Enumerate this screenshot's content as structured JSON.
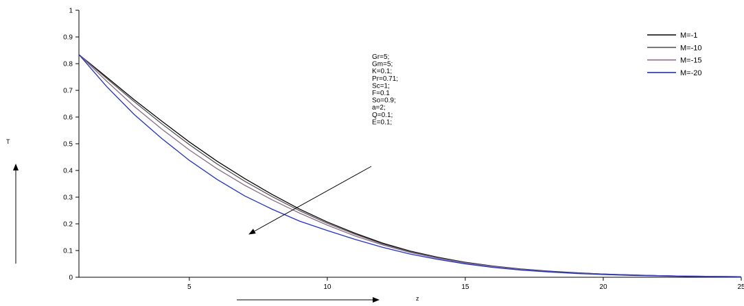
{
  "chart_data": {
    "type": "line",
    "title": "",
    "xlabel": "z",
    "ylabel": "T",
    "xlim": [
      1,
      25
    ],
    "ylim": [
      0,
      1
    ],
    "x_ticks": [
      "5",
      "10",
      "15",
      "20",
      "25"
    ],
    "y_ticks": [
      "0",
      "0.1",
      "0.2",
      "0.3",
      "0.4",
      "0.5",
      "0.6",
      "0.7",
      "0.8",
      "0.9",
      "1"
    ],
    "grid": false,
    "legend_position": "top-right",
    "x": [
      1,
      2,
      3,
      4,
      5,
      6,
      7,
      8,
      9,
      10,
      11,
      12,
      13,
      14,
      15,
      16,
      17,
      18,
      19,
      20,
      21,
      22,
      23,
      24,
      25
    ],
    "series": [
      {
        "name": "M=-1",
        "color": "#000000",
        "values": [
          0.834,
          0.75,
          0.665,
          0.585,
          0.507,
          0.435,
          0.37,
          0.31,
          0.255,
          0.207,
          0.165,
          0.128,
          0.098,
          0.075,
          0.056,
          0.042,
          0.031,
          0.023,
          0.017,
          0.012,
          0.009,
          0.006,
          0.004,
          0.003,
          0.002
        ]
      },
      {
        "name": "M=-10",
        "color": "#555555",
        "values": [
          0.834,
          0.745,
          0.658,
          0.575,
          0.497,
          0.425,
          0.36,
          0.302,
          0.249,
          0.202,
          0.161,
          0.125,
          0.096,
          0.073,
          0.055,
          0.041,
          0.03,
          0.022,
          0.016,
          0.012,
          0.008,
          0.006,
          0.004,
          0.003,
          0.002
        ]
      },
      {
        "name": "M=-15",
        "color": "#8a6a86",
        "values": [
          0.834,
          0.735,
          0.64,
          0.555,
          0.477,
          0.407,
          0.345,
          0.29,
          0.24,
          0.195,
          0.155,
          0.121,
          0.093,
          0.071,
          0.053,
          0.04,
          0.029,
          0.021,
          0.015,
          0.011,
          0.008,
          0.006,
          0.004,
          0.003,
          0.002
        ]
      },
      {
        "name": "M=-20",
        "color": "#1f2fd6",
        "values": [
          0.834,
          0.715,
          0.61,
          0.52,
          0.438,
          0.367,
          0.305,
          0.255,
          0.21,
          0.175,
          0.142,
          0.112,
          0.087,
          0.067,
          0.05,
          0.037,
          0.027,
          0.02,
          0.014,
          0.01,
          0.007,
          0.005,
          0.003,
          0.002,
          0.001
        ]
      }
    ],
    "annotations": [
      "Gr=5;",
      "Gm=5;",
      "K=0.1;",
      "Pr=0.71;",
      "Sc=1;",
      "F=0.1",
      "So=0.9;",
      "a=2;",
      "Q=0.1;",
      "E=0.1;"
    ]
  }
}
